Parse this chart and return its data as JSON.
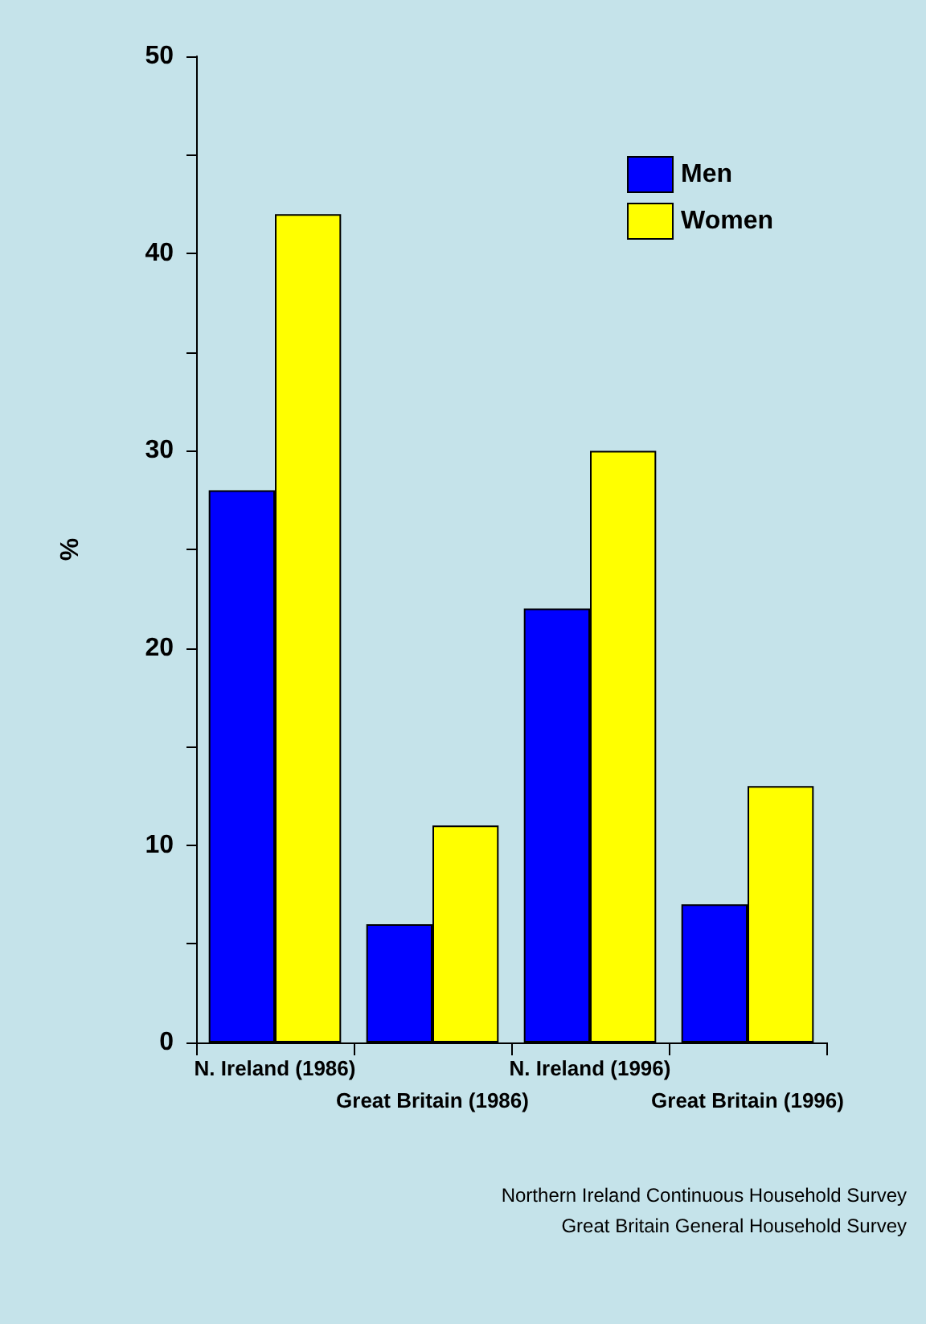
{
  "chart_data": {
    "type": "bar",
    "ylabel": "%",
    "categories": [
      "N. Ireland (1986)",
      "Great Britain (1986)",
      "N. Ireland (1996)",
      "Great Britain (1996)"
    ],
    "series": [
      {
        "name": "Men",
        "color": "#0000ff",
        "values": [
          28,
          6,
          22,
          7
        ]
      },
      {
        "name": "Women",
        "color": "#ffff00",
        "values": [
          42,
          11,
          30,
          13
        ]
      }
    ],
    "ylim": [
      0,
      50
    ],
    "yticks": [
      0,
      {
        "value": 5,
        "label": null
      },
      10,
      {
        "value": 15,
        "label": null
      },
      20,
      {
        "value": 25,
        "label": null
      },
      30,
      {
        "value": 35,
        "label": null
      },
      40,
      {
        "value": 45,
        "label": null
      },
      50
    ],
    "grid": false,
    "legend": "top right",
    "annotations": [
      "Northern Ireland Continuous Household Survey",
      "Great Britain General Household Survey"
    ]
  }
}
